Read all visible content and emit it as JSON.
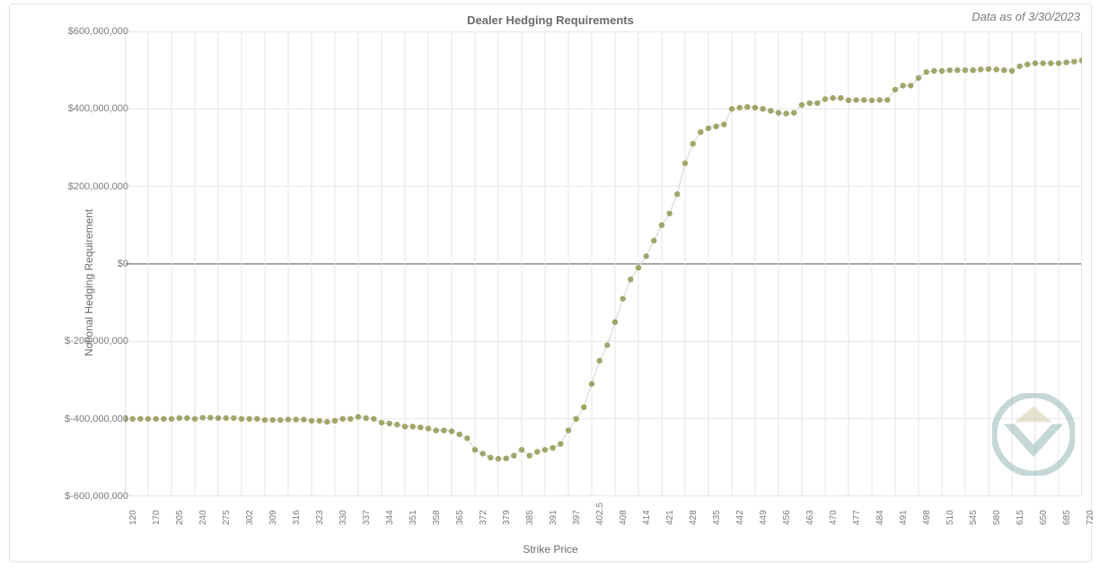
{
  "title": "Dealer Hedging Requirements",
  "date_note": "Data as of 3/30/2023",
  "x_axis_title": "Strike Price",
  "y_axis_title": "Notional Hedging Requirement",
  "chart": {
    "type": "scatter-line",
    "background_color": "#ffffff",
    "grid_color": "#e6e6e6",
    "zero_line_color": "#888888",
    "line_color": "#d9d9d9",
    "marker_color": "#a2a569",
    "marker_size": 3.2,
    "line_width": 1.2,
    "title_fontsize": 13,
    "label_fontsize": 12,
    "tick_fontsize": 11,
    "ylim": [
      -600000000,
      600000000
    ],
    "ytick_step": 200000000,
    "ytick_labels": [
      "$-600,000,000",
      "$-400,000,000",
      "$-200,000,000",
      "$0",
      "$200,000,000",
      "$400,000,000",
      "$600,000,000"
    ],
    "x_tick_labels": [
      "120",
      "170",
      "205",
      "240",
      "275",
      "302",
      "309",
      "316",
      "323",
      "330",
      "337",
      "344",
      "351",
      "358",
      "365",
      "372",
      "379",
      "385",
      "391",
      "397",
      "402.5",
      "408",
      "414",
      "421",
      "428",
      "435",
      "442",
      "449",
      "456",
      "463",
      "470",
      "477",
      "484",
      "491",
      "498",
      "510",
      "545",
      "580",
      "615",
      "650",
      "685",
      "720"
    ],
    "x_values": [
      120,
      125,
      130,
      170,
      175,
      180,
      205,
      210,
      215,
      240,
      245,
      250,
      275,
      280,
      285,
      302,
      304,
      306,
      309,
      311,
      313,
      316,
      318,
      320,
      323,
      325,
      327,
      330,
      332,
      334,
      337,
      339,
      341,
      344,
      346,
      348,
      351,
      353,
      355,
      358,
      360,
      362,
      365,
      367,
      369,
      372,
      374,
      376,
      379,
      381,
      383,
      385,
      387,
      389,
      391,
      393,
      395,
      397,
      399,
      400,
      402.5,
      403,
      404,
      408,
      409,
      410,
      414,
      416,
      418,
      421,
      423,
      425,
      428,
      430,
      432,
      435,
      437,
      439,
      442,
      444,
      446,
      449,
      451,
      453,
      456,
      458,
      460,
      463,
      465,
      467,
      470,
      473,
      476,
      477,
      480,
      483,
      484,
      487,
      490,
      491,
      494,
      497,
      498,
      503,
      506,
      510,
      520,
      530,
      545,
      555,
      565,
      580,
      590,
      600,
      615,
      625,
      635,
      650,
      660,
      670,
      685,
      695,
      705,
      720
    ],
    "y_values": [
      -400000000,
      -400000000,
      -400000000,
      -400000000,
      -400000000,
      -400000000,
      -400000000,
      -398000000,
      -398000000,
      -400000000,
      -397000000,
      -397000000,
      -398000000,
      -398000000,
      -398000000,
      -400000000,
      -400000000,
      -400000000,
      -403000000,
      -403000000,
      -403000000,
      -402000000,
      -402000000,
      -402000000,
      -405000000,
      -405000000,
      -408000000,
      -405000000,
      -400000000,
      -400000000,
      -395000000,
      -398000000,
      -400000000,
      -410000000,
      -412000000,
      -415000000,
      -420000000,
      -420000000,
      -422000000,
      -425000000,
      -430000000,
      -430000000,
      -432000000,
      -440000000,
      -450000000,
      -480000000,
      -490000000,
      -500000000,
      -503000000,
      -502000000,
      -495000000,
      -480000000,
      -495000000,
      -485000000,
      -480000000,
      -475000000,
      -465000000,
      -430000000,
      -400000000,
      -370000000,
      -310000000,
      -250000000,
      -210000000,
      -150000000,
      -90000000,
      -40000000,
      -10000000,
      20000000,
      60000000,
      100000000,
      130000000,
      180000000,
      260000000,
      310000000,
      340000000,
      350000000,
      355000000,
      360000000,
      400000000,
      403000000,
      405000000,
      403000000,
      400000000,
      395000000,
      390000000,
      388000000,
      390000000,
      410000000,
      415000000,
      415000000,
      425000000,
      428000000,
      428000000,
      422000000,
      423000000,
      423000000,
      422000000,
      423000000,
      423000000,
      450000000,
      460000000,
      460000000,
      480000000,
      495000000,
      498000000,
      498000000,
      500000000,
      500000000,
      500000000,
      500000000,
      502000000,
      503000000,
      502000000,
      500000000,
      498000000,
      510000000,
      515000000,
      518000000,
      518000000,
      518000000,
      518000000,
      520000000,
      522000000,
      525000000,
      528000000
    ]
  },
  "watermark": {
    "outer_color": "#7fa7a5",
    "inner_color": "#c9c59a",
    "size": 92
  }
}
